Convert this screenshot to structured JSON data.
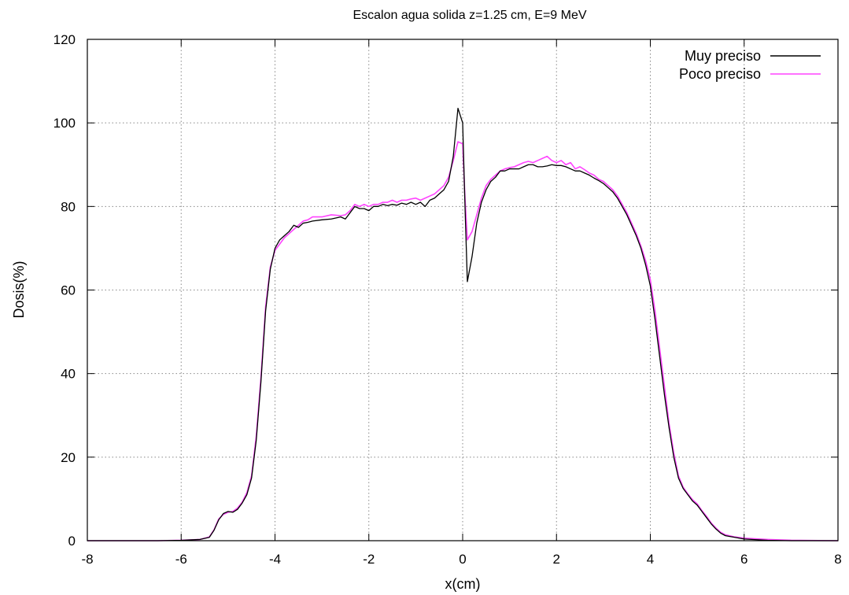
{
  "chart_data": {
    "type": "line",
    "title": "Escalon agua solida z=1.25 cm, E=9 MeV",
    "xlabel": "x(cm)",
    "ylabel": "Dosis(%)",
    "xlim": [
      -8,
      8
    ],
    "ylim": [
      0,
      120
    ],
    "xticks": [
      -8,
      -6,
      -4,
      -2,
      0,
      2,
      4,
      6,
      8
    ],
    "yticks": [
      0,
      20,
      40,
      60,
      80,
      100,
      120
    ],
    "grid": true,
    "legend": "top-right",
    "series": [
      {
        "name": "Muy preciso",
        "color": "#000000",
        "points": [
          [
            -8,
            0
          ],
          [
            -6.5,
            0
          ],
          [
            -6,
            0.1
          ],
          [
            -5.6,
            0.3
          ],
          [
            -5.4,
            0.8
          ],
          [
            -5.3,
            2.5
          ],
          [
            -5.2,
            5
          ],
          [
            -5.1,
            6.5
          ],
          [
            -5.0,
            7
          ],
          [
            -4.9,
            6.8
          ],
          [
            -4.8,
            7.5
          ],
          [
            -4.7,
            9
          ],
          [
            -4.6,
            11
          ],
          [
            -4.5,
            15
          ],
          [
            -4.4,
            24
          ],
          [
            -4.3,
            38
          ],
          [
            -4.2,
            55
          ],
          [
            -4.1,
            65
          ],
          [
            -4.0,
            70
          ],
          [
            -3.9,
            72
          ],
          [
            -3.8,
            73
          ],
          [
            -3.7,
            74
          ],
          [
            -3.6,
            75.5
          ],
          [
            -3.5,
            75
          ],
          [
            -3.4,
            76
          ],
          [
            -3.3,
            76.2
          ],
          [
            -3.2,
            76.5
          ],
          [
            -3.0,
            76.8
          ],
          [
            -2.8,
            77
          ],
          [
            -2.6,
            77.5
          ],
          [
            -2.5,
            77
          ],
          [
            -2.4,
            78.5
          ],
          [
            -2.3,
            80
          ],
          [
            -2.2,
            79.5
          ],
          [
            -2.1,
            79.5
          ],
          [
            -2.0,
            79
          ],
          [
            -1.9,
            80
          ],
          [
            -1.8,
            80
          ],
          [
            -1.7,
            80.5
          ],
          [
            -1.6,
            80.2
          ],
          [
            -1.5,
            80.5
          ],
          [
            -1.4,
            80.3
          ],
          [
            -1.3,
            80.8
          ],
          [
            -1.2,
            80.5
          ],
          [
            -1.1,
            81
          ],
          [
            -1.0,
            80.5
          ],
          [
            -0.9,
            81
          ],
          [
            -0.8,
            80
          ],
          [
            -0.7,
            81.5
          ],
          [
            -0.6,
            82
          ],
          [
            -0.5,
            83
          ],
          [
            -0.4,
            84
          ],
          [
            -0.3,
            86
          ],
          [
            -0.2,
            92
          ],
          [
            -0.1,
            103.5
          ],
          [
            0.0,
            100
          ],
          [
            0.05,
            80
          ],
          [
            0.1,
            62
          ],
          [
            0.2,
            68
          ],
          [
            0.3,
            76
          ],
          [
            0.4,
            81
          ],
          [
            0.5,
            84
          ],
          [
            0.6,
            86
          ],
          [
            0.7,
            87
          ],
          [
            0.8,
            88.5
          ],
          [
            0.9,
            88.5
          ],
          [
            1.0,
            89
          ],
          [
            1.1,
            89
          ],
          [
            1.2,
            89
          ],
          [
            1.3,
            89.5
          ],
          [
            1.4,
            90
          ],
          [
            1.5,
            90
          ],
          [
            1.6,
            89.5
          ],
          [
            1.7,
            89.5
          ],
          [
            1.8,
            89.7
          ],
          [
            1.9,
            90
          ],
          [
            2.0,
            89.8
          ],
          [
            2.1,
            89.8
          ],
          [
            2.2,
            89.5
          ],
          [
            2.3,
            89
          ],
          [
            2.4,
            88.5
          ],
          [
            2.5,
            88.5
          ],
          [
            2.6,
            88
          ],
          [
            2.7,
            87.5
          ],
          [
            2.8,
            86.8
          ],
          [
            2.9,
            86.2
          ],
          [
            3.0,
            85.5
          ],
          [
            3.1,
            84.5
          ],
          [
            3.2,
            83.5
          ],
          [
            3.3,
            82
          ],
          [
            3.4,
            80
          ],
          [
            3.5,
            78
          ],
          [
            3.6,
            75.5
          ],
          [
            3.7,
            73
          ],
          [
            3.8,
            70
          ],
          [
            3.9,
            66
          ],
          [
            4.0,
            61
          ],
          [
            4.1,
            53
          ],
          [
            4.2,
            44
          ],
          [
            4.3,
            35
          ],
          [
            4.4,
            27
          ],
          [
            4.5,
            20
          ],
          [
            4.6,
            15
          ],
          [
            4.7,
            12.5
          ],
          [
            4.8,
            11
          ],
          [
            4.9,
            9.5
          ],
          [
            5.0,
            8.5
          ],
          [
            5.1,
            7
          ],
          [
            5.2,
            5.5
          ],
          [
            5.3,
            4
          ],
          [
            5.4,
            2.8
          ],
          [
            5.5,
            1.8
          ],
          [
            5.6,
            1.2
          ],
          [
            5.8,
            0.8
          ],
          [
            6.0,
            0.4
          ],
          [
            6.5,
            0.1
          ],
          [
            7.0,
            0
          ],
          [
            8,
            0
          ]
        ]
      },
      {
        "name": "Poco preciso",
        "color": "#ff44ff",
        "points": [
          [
            -8,
            0
          ],
          [
            -6.5,
            0
          ],
          [
            -6,
            0.1
          ],
          [
            -5.6,
            0.3
          ],
          [
            -5.4,
            0.9
          ],
          [
            -5.3,
            2.6
          ],
          [
            -5.2,
            5.2
          ],
          [
            -5.1,
            6.3
          ],
          [
            -5.0,
            6.8
          ],
          [
            -4.9,
            7
          ],
          [
            -4.8,
            7.8
          ],
          [
            -4.7,
            9.2
          ],
          [
            -4.6,
            11.5
          ],
          [
            -4.5,
            15.5
          ],
          [
            -4.4,
            25
          ],
          [
            -4.3,
            39
          ],
          [
            -4.2,
            56
          ],
          [
            -4.1,
            65.5
          ],
          [
            -4.0,
            69.5
          ],
          [
            -3.9,
            71
          ],
          [
            -3.8,
            72.5
          ],
          [
            -3.7,
            73.5
          ],
          [
            -3.6,
            74.5
          ],
          [
            -3.5,
            75.5
          ],
          [
            -3.4,
            76.5
          ],
          [
            -3.3,
            76.8
          ],
          [
            -3.2,
            77.5
          ],
          [
            -3.0,
            77.5
          ],
          [
            -2.8,
            78
          ],
          [
            -2.6,
            77.8
          ],
          [
            -2.5,
            78
          ],
          [
            -2.4,
            79
          ],
          [
            -2.3,
            80.5
          ],
          [
            -2.2,
            80
          ],
          [
            -2.1,
            80.5
          ],
          [
            -2.0,
            80
          ],
          [
            -1.9,
            80.5
          ],
          [
            -1.8,
            80.5
          ],
          [
            -1.7,
            81
          ],
          [
            -1.6,
            81
          ],
          [
            -1.5,
            81.5
          ],
          [
            -1.4,
            81
          ],
          [
            -1.3,
            81.5
          ],
          [
            -1.2,
            81.5
          ],
          [
            -1.1,
            81.8
          ],
          [
            -1.0,
            82
          ],
          [
            -0.9,
            81.5
          ],
          [
            -0.8,
            82
          ],
          [
            -0.7,
            82.5
          ],
          [
            -0.6,
            83
          ],
          [
            -0.5,
            84
          ],
          [
            -0.4,
            85
          ],
          [
            -0.3,
            87
          ],
          [
            -0.2,
            91
          ],
          [
            -0.1,
            95.5
          ],
          [
            0.0,
            95
          ],
          [
            0.05,
            82
          ],
          [
            0.1,
            72
          ],
          [
            0.2,
            74
          ],
          [
            0.3,
            78
          ],
          [
            0.4,
            82
          ],
          [
            0.5,
            85
          ],
          [
            0.6,
            86.5
          ],
          [
            0.7,
            87.5
          ],
          [
            0.8,
            88.5
          ],
          [
            0.9,
            89
          ],
          [
            1.0,
            89.3
          ],
          [
            1.1,
            89.5
          ],
          [
            1.2,
            90
          ],
          [
            1.3,
            90.5
          ],
          [
            1.4,
            90.8
          ],
          [
            1.5,
            90.5
          ],
          [
            1.6,
            91
          ],
          [
            1.7,
            91.5
          ],
          [
            1.8,
            92
          ],
          [
            1.9,
            91
          ],
          [
            2.0,
            90.5
          ],
          [
            2.1,
            91
          ],
          [
            2.2,
            90
          ],
          [
            2.3,
            90.5
          ],
          [
            2.4,
            89
          ],
          [
            2.5,
            89.5
          ],
          [
            2.6,
            88.8
          ],
          [
            2.7,
            88
          ],
          [
            2.8,
            87.5
          ],
          [
            2.9,
            86.5
          ],
          [
            3.0,
            86
          ],
          [
            3.1,
            85
          ],
          [
            3.2,
            84
          ],
          [
            3.3,
            82.5
          ],
          [
            3.4,
            80.5
          ],
          [
            3.5,
            78.5
          ],
          [
            3.6,
            76
          ],
          [
            3.7,
            73.5
          ],
          [
            3.8,
            70.5
          ],
          [
            3.9,
            67
          ],
          [
            4.0,
            62.5
          ],
          [
            4.1,
            55
          ],
          [
            4.2,
            46
          ],
          [
            4.3,
            37
          ],
          [
            4.4,
            28
          ],
          [
            4.5,
            21
          ],
          [
            4.6,
            15.5
          ],
          [
            4.7,
            12.8
          ],
          [
            4.8,
            11.2
          ],
          [
            4.9,
            9.8
          ],
          [
            5.0,
            8.8
          ],
          [
            5.1,
            7.2
          ],
          [
            5.2,
            5.8
          ],
          [
            5.3,
            4.2
          ],
          [
            5.4,
            3
          ],
          [
            5.5,
            2
          ],
          [
            5.6,
            1.4
          ],
          [
            5.8,
            0.9
          ],
          [
            6.0,
            0.6
          ],
          [
            6.5,
            0.3
          ],
          [
            7.0,
            0.1
          ],
          [
            8,
            0
          ]
        ]
      }
    ]
  }
}
